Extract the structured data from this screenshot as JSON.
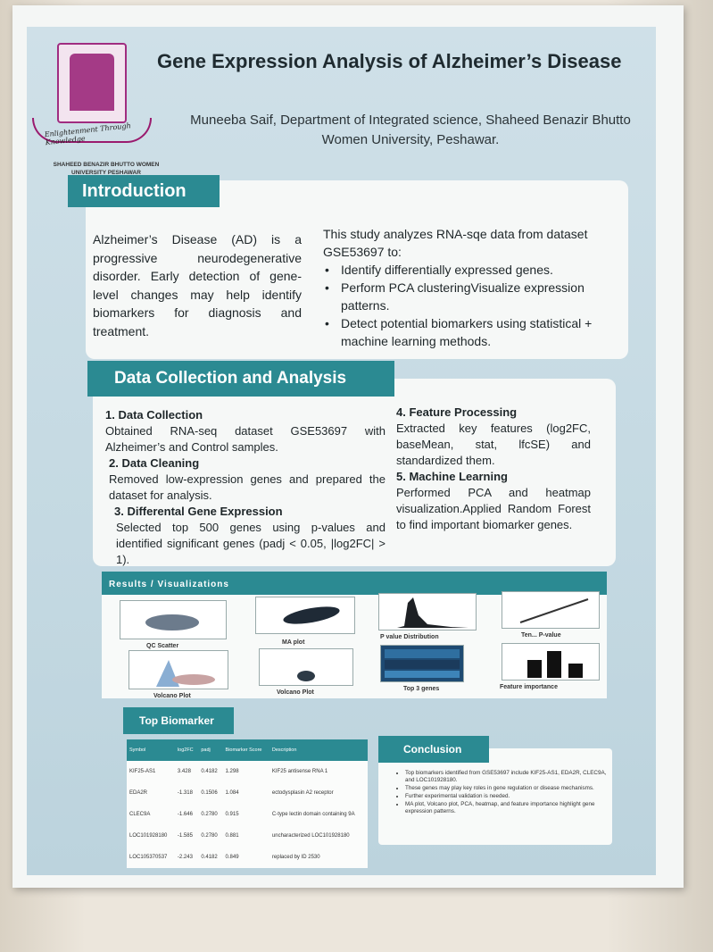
{
  "logo": {
    "motto": "Enlightenment Through Knowledge",
    "caption": "SHAHEED BENAZIR BHUTTO WOMEN UNIVERSITY PESHAWAR"
  },
  "title": "Gene Expression Analysis of Alzheimer’s Disease",
  "author": "Muneeba Saif, Department of Integrated science, Shaheed Benazir Bhutto Women University, Peshawar.",
  "introduction": {
    "heading": "Introduction",
    "left_text": "Alzheimer’s Disease (AD) is a progressive neurodegenerative disorder. Early detection of gene-level changes may help identify biomarkers for diagnosis and treatment.",
    "right_lead": "This study analyzes RNA-sqe data from dataset GSE53697 to:",
    "bullets": [
      "Identify differentially expressed genes.",
      "Perform PCA clusteringVisualize expression patterns.",
      "Detect potential biomarkers using statistical + machine learning methods."
    ]
  },
  "data_collection": {
    "heading": "Data Collection and Analysis",
    "steps": [
      {
        "title": "1. Data Collection",
        "text": "Obtained RNA-seq dataset GSE53697 with Alzheimer’s and Control samples."
      },
      {
        "title": "2. Data Cleaning",
        "text": "Removed low-expression genes and prepared the dataset for analysis."
      },
      {
        "title": "3. Differental Gene Expression",
        "text": "Selected top 500 genes using p-values and identified significant genes (padj < 0.05, |log2FC| > 1)."
      },
      {
        "title": "4. Feature Processing",
        "text": "Extracted key features (log2FC, baseMean, stat, lfcSE) and standardized them."
      },
      {
        "title": "5. Machine Learning",
        "text": "Performed PCA and heatmap visualization.Applied Random Forest to find important biomarker genes."
      }
    ]
  },
  "results": {
    "heading": "Results / Visualizations",
    "plots": [
      "QC Scatter",
      "MA plot",
      "P value Distribution",
      "Ten... P-value",
      "Volcano Plot",
      "Volcano Plot",
      "Top 3 genes",
      "Feature importance"
    ]
  },
  "biomarkers": {
    "heading": "Top Biomarker",
    "columns": [
      "Symbol",
      "log2FC",
      "padj",
      "Biomarker Score",
      "Description"
    ],
    "rows": [
      [
        "KIF25-AS1",
        "3.428",
        "0.4182",
        "1.298",
        "KIF25 antisense RNA 1"
      ],
      [
        "EDA2R",
        "-1.318",
        "0.1506",
        "1.084",
        "ectodysplasin A2 receptor"
      ],
      [
        "CLEC9A",
        "-1.646",
        "0.2780",
        "0.915",
        "C-type lectin domain containing 9A"
      ],
      [
        "LOC101928180",
        "-1.585",
        "0.2780",
        "0.881",
        "uncharacterized LOC101928180"
      ],
      [
        "LOC105370537",
        "-2.243",
        "0.4182",
        "0.849",
        "replaced by ID 2530"
      ]
    ]
  },
  "conclusion": {
    "heading": "Conclusion",
    "bullets": [
      "Top biomarkers identified from GSE53697 include KIF25-AS1, EDA2R, CLEC9A, and LOC101928180.",
      "These genes may play key roles in gene regulation or disease mechanisms.",
      "Further experimental validation is needed.",
      "MA plot, Volcano plot, PCA, heatmap, and feature importance highlight gene expression patterns."
    ]
  },
  "colors": {
    "header_teal": "#2b8a92",
    "panel_blue": "#c4d9e2",
    "logo_magenta": "#a43a86"
  }
}
